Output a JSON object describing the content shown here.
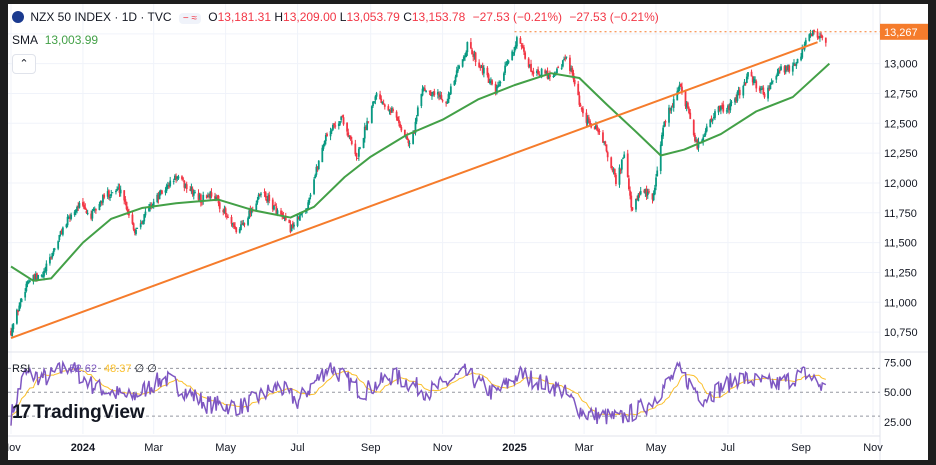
{
  "legend": {
    "symbol": "NZX 50 INDEX · 1D · TVC",
    "flag_icon": "new-zealand-flag-icon",
    "o_label": "O",
    "o_value": "13,181.31",
    "h_label": "H",
    "h_value": "13,209.00",
    "l_label": "L",
    "l_value": "13,053.79",
    "c_label": "C",
    "c_value": "13,153.78",
    "change": "−27.53 (−0.21%)",
    "change2": "−27.53 (−0.21%)",
    "pill_text": "− ≈",
    "sma_label": "SMA",
    "sma_value": "13,003.99",
    "collapse_icon": "chevron-up-icon"
  },
  "rsi_legend": {
    "label": "RSI",
    "value1": "52.62",
    "value2": "48.37",
    "value3": "∅",
    "value4": "∅"
  },
  "logo": {
    "text": "TradingView",
    "mark": "17"
  },
  "colors": {
    "up": "#089981",
    "down": "#f23645",
    "sma": "#43a047",
    "trendline": "#f57c2c",
    "price_label": "#f57c2c",
    "rsi": "#7e57c2",
    "rsi_ma": "#fbc02d",
    "text": "#131722",
    "grid": "#f0f3fa"
  },
  "chart_data": [
    {
      "type": "candlestick",
      "title": "NZX 50 INDEX · 1D · TVC",
      "x_ticks": [
        "Nov",
        "2024",
        "Mar",
        "May",
        "Jul",
        "Sep",
        "Nov",
        "2025",
        "Mar",
        "May",
        "Jul",
        "Sep",
        "Nov"
      ],
      "y_ticks": [
        10750,
        11000,
        11250,
        11500,
        11750,
        12000,
        12250,
        12500,
        12750,
        13000,
        13250
      ],
      "ylim": [
        10600,
        13500
      ],
      "last_price_label": "13,267",
      "last_price": 13267,
      "anchors": [
        {
          "date": "2023-11-01",
          "close": 10760
        },
        {
          "date": "2023-11-15",
          "close": 11180
        },
        {
          "date": "2023-11-28",
          "close": 11220
        },
        {
          "date": "2023-12-15",
          "close": 11620
        },
        {
          "date": "2023-12-28",
          "close": 11820
        },
        {
          "date": "2024-01-08",
          "close": 11720
        },
        {
          "date": "2024-01-20",
          "close": 11900
        },
        {
          "date": "2024-02-02",
          "close": 11950
        },
        {
          "date": "2024-02-14",
          "close": 11600
        },
        {
          "date": "2024-02-28",
          "close": 11820
        },
        {
          "date": "2024-03-20",
          "close": 12050
        },
        {
          "date": "2024-04-10",
          "close": 11860
        },
        {
          "date": "2024-04-20",
          "close": 11920
        },
        {
          "date": "2024-05-10",
          "close": 11580
        },
        {
          "date": "2024-06-01",
          "close": 11920
        },
        {
          "date": "2024-06-25",
          "close": 11620
        },
        {
          "date": "2024-07-08",
          "close": 11780
        },
        {
          "date": "2024-07-25",
          "close": 12400
        },
        {
          "date": "2024-08-08",
          "close": 12550
        },
        {
          "date": "2024-08-20",
          "close": 12200
        },
        {
          "date": "2024-09-05",
          "close": 12750
        },
        {
          "date": "2024-09-20",
          "close": 12600
        },
        {
          "date": "2024-10-05",
          "close": 12300
        },
        {
          "date": "2024-10-15",
          "close": 12800
        },
        {
          "date": "2024-11-05",
          "close": 12700
        },
        {
          "date": "2024-11-22",
          "close": 13150
        },
        {
          "date": "2024-12-05",
          "close": 12950
        },
        {
          "date": "2024-12-16",
          "close": 12750
        },
        {
          "date": "2025-01-03",
          "close": 13200
        },
        {
          "date": "2025-01-15",
          "close": 12950
        },
        {
          "date": "2025-02-01",
          "close": 12900
        },
        {
          "date": "2025-02-15",
          "close": 13050
        },
        {
          "date": "2025-02-28",
          "close": 12550
        },
        {
          "date": "2025-03-15",
          "close": 12420
        },
        {
          "date": "2025-03-28",
          "close": 12020
        },
        {
          "date": "2025-04-05",
          "close": 12250
        },
        {
          "date": "2025-04-10",
          "close": 11770
        },
        {
          "date": "2025-04-20",
          "close": 11950
        },
        {
          "date": "2025-04-28",
          "close": 11850
        },
        {
          "date": "2025-05-08",
          "close": 12520
        },
        {
          "date": "2025-05-22",
          "close": 12820
        },
        {
          "date": "2025-06-05",
          "close": 12300
        },
        {
          "date": "2025-06-20",
          "close": 12600
        },
        {
          "date": "2025-07-05",
          "close": 12650
        },
        {
          "date": "2025-07-18",
          "close": 12900
        },
        {
          "date": "2025-08-01",
          "close": 12750
        },
        {
          "date": "2025-08-15",
          "close": 12950
        },
        {
          "date": "2025-08-28",
          "close": 12980
        },
        {
          "date": "2025-09-05",
          "close": 13180
        },
        {
          "date": "2025-09-12",
          "close": 13270
        },
        {
          "date": "2025-09-22",
          "close": 13160
        }
      ],
      "sma_anchors": [
        {
          "date": "2023-11-01",
          "value": 11300
        },
        {
          "date": "2023-11-20",
          "value": 11180
        },
        {
          "date": "2023-12-05",
          "value": 11200
        },
        {
          "date": "2024-01-01",
          "value": 11500
        },
        {
          "date": "2024-01-25",
          "value": 11700
        },
        {
          "date": "2024-02-20",
          "value": 11790
        },
        {
          "date": "2024-03-20",
          "value": 11830
        },
        {
          "date": "2024-04-25",
          "value": 11860
        },
        {
          "date": "2024-05-25",
          "value": 11770
        },
        {
          "date": "2024-06-25",
          "value": 11710
        },
        {
          "date": "2024-07-15",
          "value": 11800
        },
        {
          "date": "2024-08-10",
          "value": 12050
        },
        {
          "date": "2024-09-01",
          "value": 12220
        },
        {
          "date": "2024-10-01",
          "value": 12400
        },
        {
          "date": "2024-11-01",
          "value": 12530
        },
        {
          "date": "2024-12-01",
          "value": 12700
        },
        {
          "date": "2025-01-01",
          "value": 12820
        },
        {
          "date": "2025-02-01",
          "value": 12920
        },
        {
          "date": "2025-02-25",
          "value": 12880
        },
        {
          "date": "2025-03-20",
          "value": 12660
        },
        {
          "date": "2025-04-15",
          "value": 12420
        },
        {
          "date": "2025-05-05",
          "value": 12230
        },
        {
          "date": "2025-05-25",
          "value": 12280
        },
        {
          "date": "2025-06-25",
          "value": 12410
        },
        {
          "date": "2025-07-25",
          "value": 12600
        },
        {
          "date": "2025-08-25",
          "value": 12720
        },
        {
          "date": "2025-09-25",
          "value": 13000
        }
      ],
      "trendline": [
        {
          "date": "2023-11-01",
          "value": 10700
        },
        {
          "date": "2025-09-15",
          "value": 13180
        }
      ],
      "dotted_level": {
        "from": "2025-01-01",
        "to": "2025-12-01",
        "value": 13267
      }
    },
    {
      "type": "line",
      "title": "RSI",
      "y_ticks": [
        25.0,
        50.0,
        75.0
      ],
      "ylim": [
        15,
        82
      ],
      "band_lines": [
        70,
        50,
        30
      ],
      "anchors": [
        {
          "date": "2023-11-01",
          "value": 30
        },
        {
          "date": "2023-11-12",
          "value": 65
        },
        {
          "date": "2023-12-01",
          "value": 62
        },
        {
          "date": "2023-12-20",
          "value": 72
        },
        {
          "date": "2024-01-10",
          "value": 55
        },
        {
          "date": "2024-02-10",
          "value": 45
        },
        {
          "date": "2024-03-10",
          "value": 62
        },
        {
          "date": "2024-04-15",
          "value": 40
        },
        {
          "date": "2024-05-15",
          "value": 38
        },
        {
          "date": "2024-06-15",
          "value": 55
        },
        {
          "date": "2024-07-01",
          "value": 42
        },
        {
          "date": "2024-07-28",
          "value": 72
        },
        {
          "date": "2024-08-25",
          "value": 50
        },
        {
          "date": "2024-09-20",
          "value": 64
        },
        {
          "date": "2024-10-20",
          "value": 50
        },
        {
          "date": "2024-11-20",
          "value": 66
        },
        {
          "date": "2024-12-15",
          "value": 48
        },
        {
          "date": "2025-01-05",
          "value": 65
        },
        {
          "date": "2025-02-10",
          "value": 52
        },
        {
          "date": "2025-03-01",
          "value": 32
        },
        {
          "date": "2025-04-01",
          "value": 28
        },
        {
          "date": "2025-04-25",
          "value": 40
        },
        {
          "date": "2025-05-20",
          "value": 68
        },
        {
          "date": "2025-06-10",
          "value": 45
        },
        {
          "date": "2025-07-10",
          "value": 62
        },
        {
          "date": "2025-08-10",
          "value": 56
        },
        {
          "date": "2025-09-05",
          "value": 66
        },
        {
          "date": "2025-09-22",
          "value": 52
        }
      ]
    }
  ]
}
